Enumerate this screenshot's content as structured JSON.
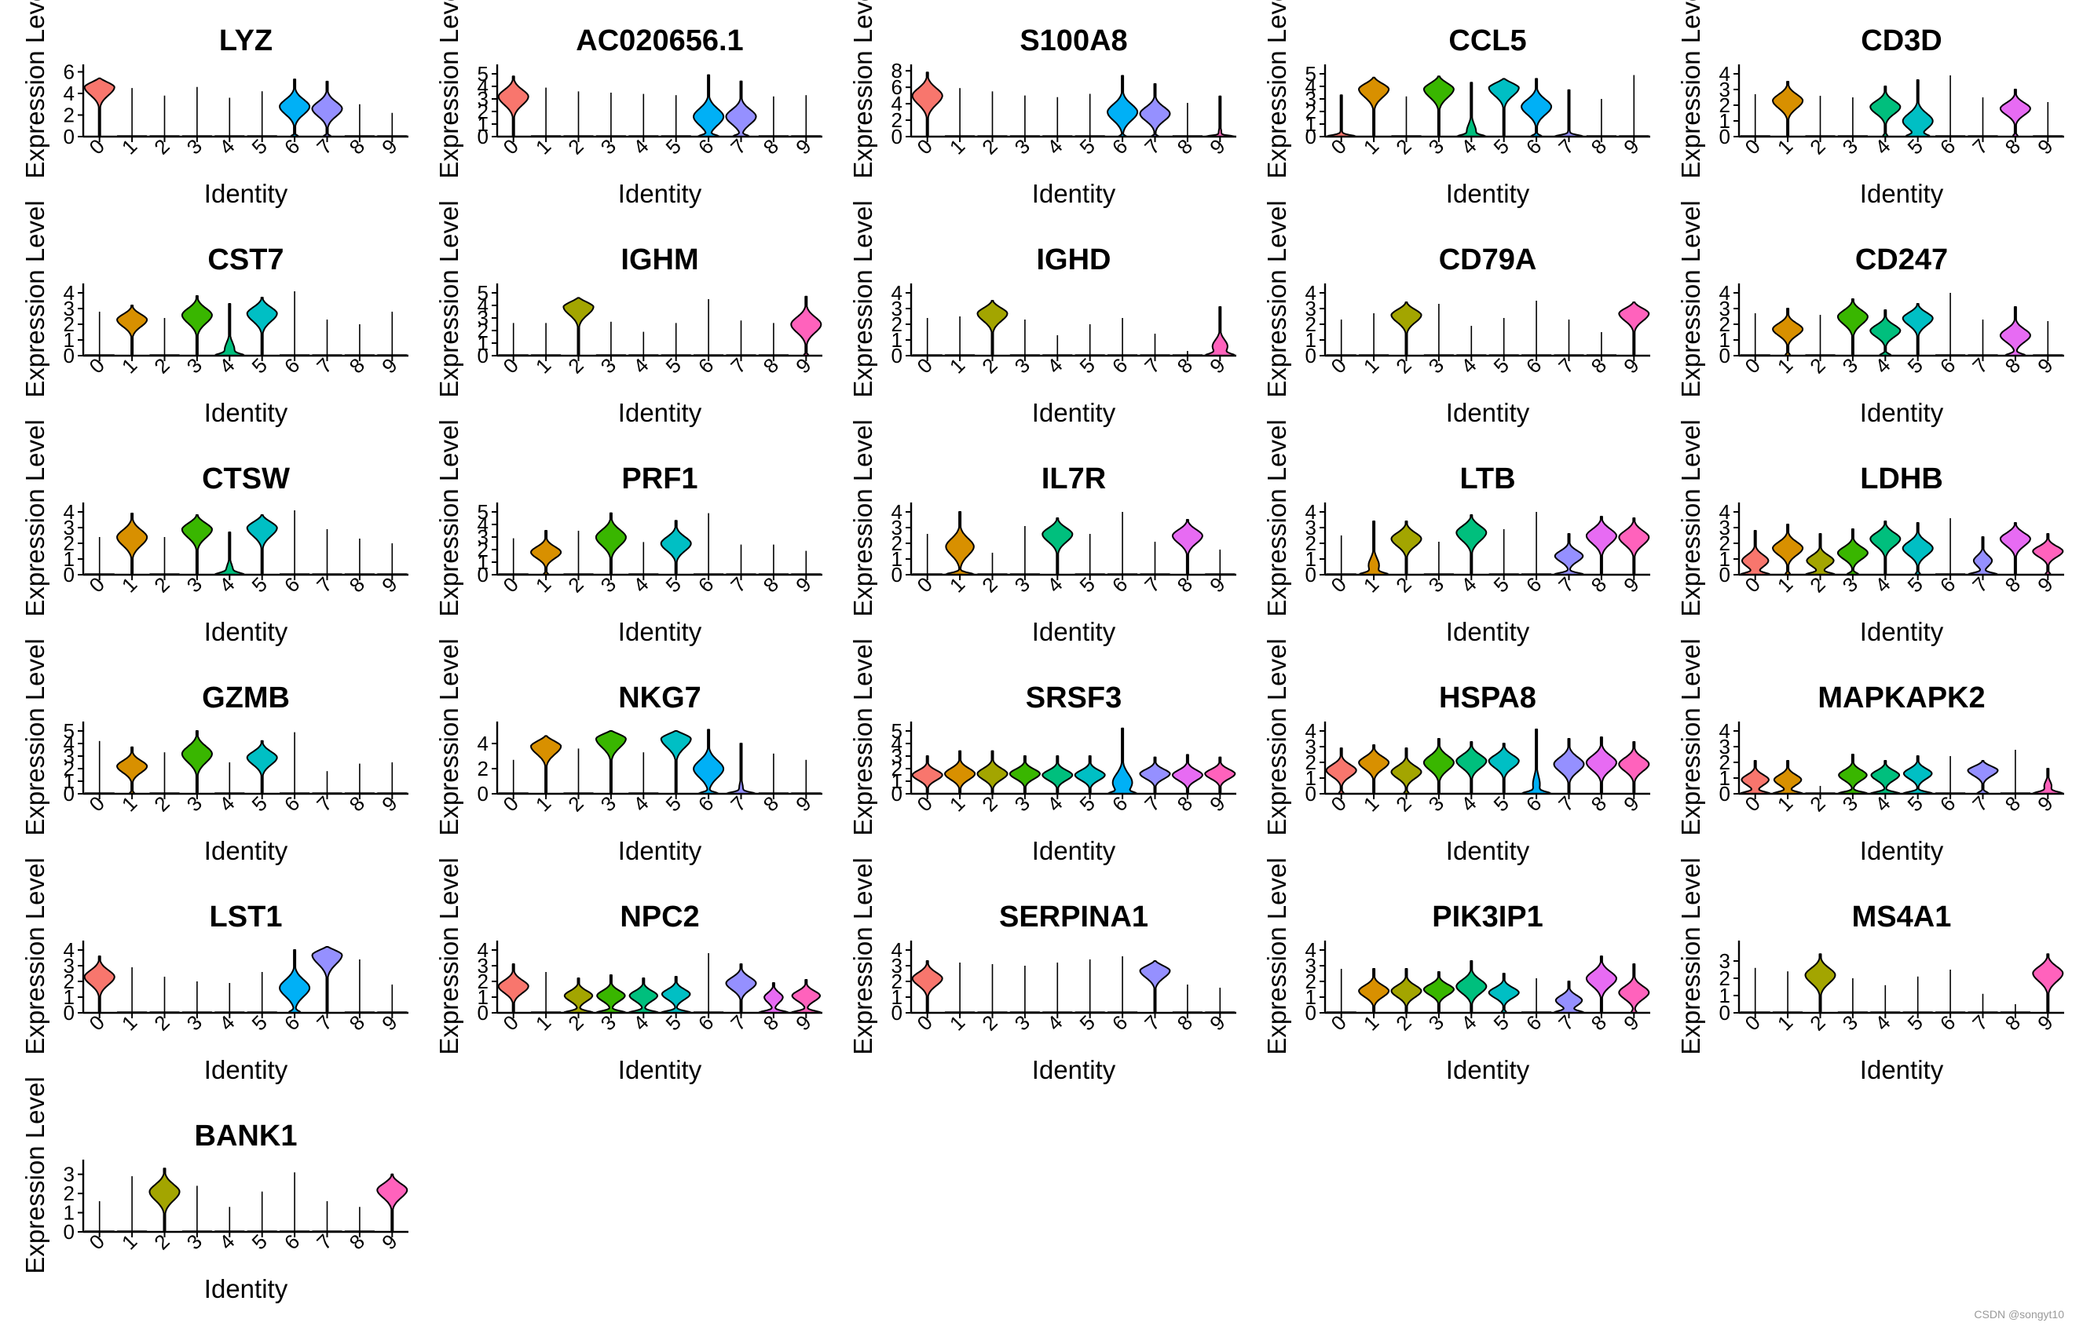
{
  "chart_data": {
    "type": "violin",
    "xlabel": "Identity",
    "ylabel": "Expression Level",
    "categories": [
      "0",
      "1",
      "2",
      "3",
      "4",
      "5",
      "6",
      "7",
      "8",
      "9"
    ],
    "colors": [
      "#F8766D",
      "#D89000",
      "#A3A500",
      "#39B600",
      "#00BF7D",
      "#00BFC4",
      "#00B0F6",
      "#9590FF",
      "#E76BF3",
      "#FF62BC"
    ],
    "panels": [
      {
        "gene": "LYZ",
        "ymax": 6.4,
        "yticks": [
          0,
          2,
          4,
          6
        ],
        "median": [
          4.6,
          0,
          0,
          0,
          0,
          0,
          2.8,
          2.6,
          0,
          0
        ],
        "max": [
          5.4,
          4.5,
          3.8,
          4.6,
          3.6,
          4.2,
          5.3,
          5.1,
          3.0,
          2.2
        ],
        "frac": [
          1,
          0,
          0,
          0,
          0,
          0,
          0.85,
          0.85,
          0,
          0
        ]
      },
      {
        "gene": "AC020656.1",
        "ymax": 5.5,
        "yticks": [
          0,
          1,
          2,
          3,
          4,
          5
        ],
        "median": [
          3.2,
          0,
          0,
          0,
          0,
          0,
          1.6,
          1.6,
          0,
          0
        ],
        "max": [
          4.8,
          3.9,
          3.6,
          3.5,
          3.4,
          3.3,
          4.9,
          4.4,
          3.2,
          3.3
        ],
        "frac": [
          1,
          0,
          0,
          0,
          0,
          0,
          0.7,
          0.75,
          0,
          0
        ]
      },
      {
        "gene": "S100A8",
        "ymax": 8.4,
        "yticks": [
          0,
          2,
          4,
          6,
          8
        ],
        "median": [
          5.0,
          0,
          0,
          0,
          0,
          0,
          3.0,
          2.8,
          0,
          0.3
        ],
        "max": [
          7.8,
          5.9,
          5.5,
          5.0,
          4.8,
          5.2,
          7.4,
          6.4,
          4.1,
          4.9
        ],
        "frac": [
          1,
          0,
          0,
          0,
          0,
          0,
          0.85,
          0.85,
          0,
          0.15
        ]
      },
      {
        "gene": "CCL5",
        "ymax": 5.5,
        "yticks": [
          0,
          1,
          2,
          3,
          4,
          5
        ],
        "median": [
          0.2,
          3.8,
          0,
          3.8,
          0.4,
          3.9,
          2.4,
          0.2,
          0,
          0
        ],
        "max": [
          3.3,
          4.7,
          3.2,
          4.8,
          4.3,
          4.6,
          4.6,
          3.7,
          3.0,
          4.9
        ],
        "frac": [
          0.1,
          1,
          0,
          1,
          0.4,
          1,
          0.8,
          0.1,
          0,
          0
        ]
      },
      {
        "gene": "CD3D",
        "ymax": 4.4,
        "yticks": [
          0,
          1,
          2,
          3,
          4
        ],
        "median": [
          0,
          2.3,
          0,
          0,
          1.9,
          1.0,
          0,
          0,
          1.8,
          0
        ],
        "max": [
          2.7,
          3.5,
          2.6,
          2.5,
          3.2,
          3.6,
          3.9,
          2.5,
          3.0,
          2.2
        ],
        "frac": [
          0,
          1,
          0,
          0,
          0.9,
          0.7,
          0,
          0,
          0.9,
          0
        ]
      },
      {
        "gene": "CST7",
        "ymax": 4.4,
        "yticks": [
          0,
          1,
          2,
          3,
          4
        ],
        "median": [
          0,
          2.3,
          0,
          2.6,
          0.4,
          2.7,
          0,
          0,
          0,
          0
        ],
        "max": [
          2.8,
          3.2,
          2.4,
          3.8,
          3.3,
          3.7,
          4.1,
          2.3,
          2.0,
          2.8
        ],
        "frac": [
          0,
          1,
          0,
          1,
          0.4,
          1,
          0,
          0,
          0,
          0
        ]
      },
      {
        "gene": "IGHM",
        "ymax": 5.5,
        "yticks": [
          0,
          1,
          2,
          3,
          4,
          5
        ],
        "median": [
          0,
          0,
          3.9,
          0,
          0,
          0,
          0,
          0,
          0,
          2.5
        ],
        "max": [
          2.6,
          2.6,
          4.6,
          2.7,
          1.9,
          2.6,
          4.5,
          2.8,
          2.6,
          4.7
        ],
        "frac": [
          0,
          0,
          1,
          0,
          0,
          0,
          0,
          0,
          0,
          0.9
        ]
      },
      {
        "gene": "IGHD",
        "ymax": 4.4,
        "yticks": [
          0,
          1,
          2,
          3,
          4
        ],
        "median": [
          0,
          0,
          2.7,
          0,
          0,
          0,
          0,
          0,
          0,
          0.6
        ],
        "max": [
          2.4,
          2.5,
          3.5,
          2.3,
          1.3,
          2.0,
          2.4,
          1.4,
          0.3,
          3.1
        ],
        "frac": [
          0,
          0,
          1,
          0,
          0,
          0,
          0,
          0,
          0,
          0.5
        ]
      },
      {
        "gene": "CD79A",
        "ymax": 4.4,
        "yticks": [
          0,
          1,
          2,
          3,
          4
        ],
        "median": [
          0,
          0,
          2.6,
          0,
          0,
          0,
          0,
          0,
          0,
          2.7
        ],
        "max": [
          2.3,
          2.7,
          3.4,
          3.3,
          1.9,
          2.4,
          3.5,
          2.3,
          1.5,
          3.4
        ],
        "frac": [
          0,
          0,
          1,
          0,
          0,
          0,
          0,
          0,
          0,
          1
        ]
      },
      {
        "gene": "CD247",
        "ymax": 4.4,
        "yticks": [
          0,
          1,
          2,
          3,
          4
        ],
        "median": [
          0,
          1.7,
          0,
          2.5,
          1.6,
          2.4,
          0,
          0,
          1.3,
          0
        ],
        "max": [
          2.7,
          3.0,
          2.6,
          3.6,
          2.9,
          3.3,
          4.0,
          2.3,
          3.1,
          2.2
        ],
        "frac": [
          0,
          0.9,
          0,
          1,
          0.8,
          1,
          0,
          0,
          0.7,
          0
        ]
      },
      {
        "gene": "CTSW",
        "ymax": 4.4,
        "yticks": [
          0,
          1,
          2,
          3,
          4
        ],
        "median": [
          0,
          2.4,
          0,
          2.9,
          0.3,
          3.0,
          0,
          0,
          0,
          0
        ],
        "max": [
          2.4,
          3.9,
          2.4,
          3.8,
          2.7,
          3.8,
          4.1,
          2.9,
          2.3,
          2.0
        ],
        "frac": [
          0,
          1,
          0,
          1,
          0.3,
          1,
          0,
          0,
          0,
          0
        ]
      },
      {
        "gene": "PRF1",
        "ymax": 5.5,
        "yticks": [
          0,
          1,
          2,
          3,
          4,
          5
        ],
        "median": [
          0,
          1.8,
          0,
          3.0,
          0,
          2.5,
          0,
          0,
          0,
          0
        ],
        "max": [
          2.9,
          3.5,
          3.5,
          4.9,
          2.6,
          4.3,
          4.9,
          2.4,
          2.4,
          1.9
        ],
        "frac": [
          0,
          0.9,
          0,
          1,
          0,
          1,
          0,
          0,
          0,
          0
        ]
      },
      {
        "gene": "IL7R",
        "ymax": 4.4,
        "yticks": [
          0,
          1,
          2,
          3,
          4
        ],
        "median": [
          0,
          1.8,
          0,
          0,
          2.6,
          0,
          0,
          0,
          2.5,
          0
        ],
        "max": [
          2.6,
          4.0,
          1.4,
          3.1,
          3.6,
          2.6,
          4.0,
          2.1,
          3.5,
          1.6
        ],
        "frac": [
          0,
          0.6,
          0,
          0,
          1,
          0,
          0,
          0,
          1,
          0
        ]
      },
      {
        "gene": "LTB",
        "ymax": 4.4,
        "yticks": [
          0,
          1,
          2,
          3,
          4
        ],
        "median": [
          0,
          0.6,
          2.3,
          0,
          2.7,
          0,
          0,
          1.2,
          2.5,
          2.4
        ],
        "max": [
          2.5,
          3.4,
          3.4,
          2.1,
          3.8,
          2.9,
          4.0,
          2.6,
          3.7,
          3.6
        ],
        "frac": [
          0,
          0.4,
          1,
          0,
          1,
          0,
          0,
          0.6,
          1,
          1
        ]
      },
      {
        "gene": "LDHB",
        "ymax": 4.4,
        "yticks": [
          0,
          1,
          2,
          3,
          4
        ],
        "median": [
          0.9,
          1.7,
          0.9,
          1.4,
          2.3,
          1.7,
          0,
          0.9,
          2.3,
          1.5
        ],
        "max": [
          2.8,
          3.2,
          2.6,
          2.9,
          3.4,
          3.3,
          3.6,
          2.4,
          3.3,
          2.6
        ],
        "frac": [
          0.6,
          0.9,
          0.6,
          0.8,
          1,
          0.9,
          0,
          0.5,
          1,
          0.9
        ]
      },
      {
        "gene": "GZMB",
        "ymax": 5.5,
        "yticks": [
          0,
          1,
          2,
          3,
          4,
          5
        ],
        "median": [
          0,
          2.2,
          0,
          3.2,
          0,
          2.9,
          0,
          0,
          0,
          0
        ],
        "max": [
          4.2,
          3.7,
          3.3,
          5.0,
          2.5,
          4.2,
          4.9,
          1.8,
          2.4,
          2.5
        ],
        "frac": [
          0,
          0.9,
          0,
          1,
          0,
          1,
          0,
          0,
          0,
          0
        ]
      },
      {
        "gene": "NKG7",
        "ymax": 5.5,
        "yticks": [
          0,
          2,
          4
        ],
        "median": [
          0,
          3.8,
          0,
          4.4,
          0,
          4.4,
          2.0,
          0.3,
          0,
          0
        ],
        "max": [
          2.7,
          4.6,
          3.6,
          5.0,
          3.3,
          5.0,
          5.1,
          4.0,
          3.2,
          2.7
        ],
        "frac": [
          0.1,
          1,
          0,
          1,
          0,
          1,
          0.7,
          0.2,
          0,
          0
        ]
      },
      {
        "gene": "SRSF3",
        "ymax": 5.5,
        "yticks": [
          0,
          1,
          2,
          3,
          4,
          5
        ],
        "median": [
          1.5,
          1.6,
          1.6,
          1.6,
          1.5,
          1.5,
          0.9,
          1.6,
          1.5,
          1.6
        ],
        "max": [
          3.0,
          3.4,
          3.4,
          3.0,
          3.0,
          3.0,
          5.2,
          2.9,
          3.1,
          2.9
        ],
        "frac": [
          1,
          1,
          1,
          1,
          1,
          1,
          0.6,
          1,
          1,
          1
        ]
      },
      {
        "gene": "HSPA8",
        "ymax": 4.4,
        "yticks": [
          0,
          1,
          2,
          3,
          4
        ],
        "median": [
          1.5,
          2.0,
          1.4,
          2.0,
          2.1,
          2.1,
          0.6,
          1.9,
          2.0,
          1.9
        ],
        "max": [
          2.9,
          3.1,
          2.9,
          3.5,
          3.3,
          3.2,
          4.1,
          3.5,
          3.6,
          3.3
        ],
        "frac": [
          0.9,
          1,
          0.9,
          1,
          1,
          1,
          0.3,
          1,
          1,
          1
        ]
      },
      {
        "gene": "MAPKAPK2",
        "ymax": 4.4,
        "yticks": [
          0,
          1,
          2,
          3,
          4
        ],
        "median": [
          0.9,
          0.9,
          0,
          1.2,
          1.2,
          1.3,
          0,
          1.5,
          0,
          0.5
        ],
        "max": [
          2.1,
          2.1,
          0.5,
          2.5,
          2.1,
          2.4,
          2.4,
          2.1,
          2.8,
          1.6
        ],
        "frac": [
          0.6,
          0.6,
          0,
          0.6,
          0.6,
          0.6,
          0,
          0.8,
          0,
          0.3
        ]
      },
      {
        "gene": "LST1",
        "ymax": 4.4,
        "yticks": [
          0,
          1,
          2,
          3,
          4
        ],
        "median": [
          2.3,
          0,
          0,
          0,
          0,
          0,
          1.6,
          3.7,
          0,
          0
        ],
        "max": [
          3.6,
          2.9,
          2.3,
          2.0,
          1.9,
          2.6,
          4.0,
          4.2,
          3.4,
          1.8
        ],
        "frac": [
          1,
          0,
          0,
          0,
          0,
          0,
          0.8,
          1,
          0,
          0
        ]
      },
      {
        "gene": "NPC2",
        "ymax": 4.4,
        "yticks": [
          0,
          1,
          2,
          3,
          4
        ],
        "median": [
          1.7,
          0,
          1.1,
          1.1,
          1.1,
          1.2,
          0,
          1.9,
          1.0,
          1.1
        ],
        "max": [
          3.1,
          2.6,
          2.2,
          2.4,
          2.2,
          2.3,
          3.8,
          3.1,
          1.9,
          2.1
        ],
        "frac": [
          1,
          0,
          0.6,
          0.6,
          0.6,
          0.6,
          0,
          1,
          0.5,
          0.6
        ]
      },
      {
        "gene": "SERPINA1",
        "ymax": 4.4,
        "yticks": [
          0,
          1,
          2,
          3,
          4
        ],
        "median": [
          2.2,
          0,
          0,
          0,
          0,
          0,
          0,
          2.7,
          0,
          0
        ],
        "max": [
          3.3,
          3.2,
          3.1,
          3.0,
          3.2,
          3.4,
          3.6,
          3.3,
          1.8,
          1.6
        ],
        "frac": [
          1,
          0,
          0,
          0,
          0,
          0,
          0,
          1,
          0,
          0
        ]
      },
      {
        "gene": "PIK3IP1",
        "ymax": 4.4,
        "yticks": [
          0,
          1,
          2,
          3,
          4
        ],
        "median": [
          0,
          1.4,
          1.4,
          1.5,
          1.7,
          1.3,
          0,
          0.8,
          2.2,
          1.3
        ],
        "max": [
          2.8,
          2.8,
          2.8,
          2.6,
          3.3,
          2.5,
          2.2,
          2.0,
          3.6,
          3.1
        ],
        "frac": [
          0,
          1,
          1,
          1,
          1,
          0.9,
          0,
          0.6,
          1,
          0.9
        ]
      },
      {
        "gene": "MS4A1",
        "ymax": 4.0,
        "yticks": [
          0,
          1,
          2,
          3
        ],
        "median": [
          0,
          0,
          2.2,
          0,
          0,
          0,
          0,
          0,
          0,
          2.3
        ],
        "max": [
          2.6,
          2.4,
          3.4,
          2.0,
          1.6,
          2.1,
          2.5,
          1.1,
          0.5,
          3.4
        ],
        "frac": [
          0,
          0,
          1,
          0,
          0,
          0,
          0,
          0,
          0,
          1
        ]
      },
      {
        "gene": "BANK1",
        "ymax": 3.6,
        "yticks": [
          0,
          1,
          2,
          3
        ],
        "median": [
          0,
          0,
          2.1,
          0,
          0,
          0,
          0,
          0,
          0,
          2.2
        ],
        "max": [
          1.6,
          2.9,
          3.3,
          2.4,
          1.3,
          2.1,
          3.1,
          1.6,
          1.3,
          3.0
        ],
        "frac": [
          0,
          0,
          1,
          0,
          0,
          0,
          0,
          0,
          0,
          1
        ]
      }
    ]
  },
  "footer": {
    "watermark": "CSDN @songyt10"
  }
}
